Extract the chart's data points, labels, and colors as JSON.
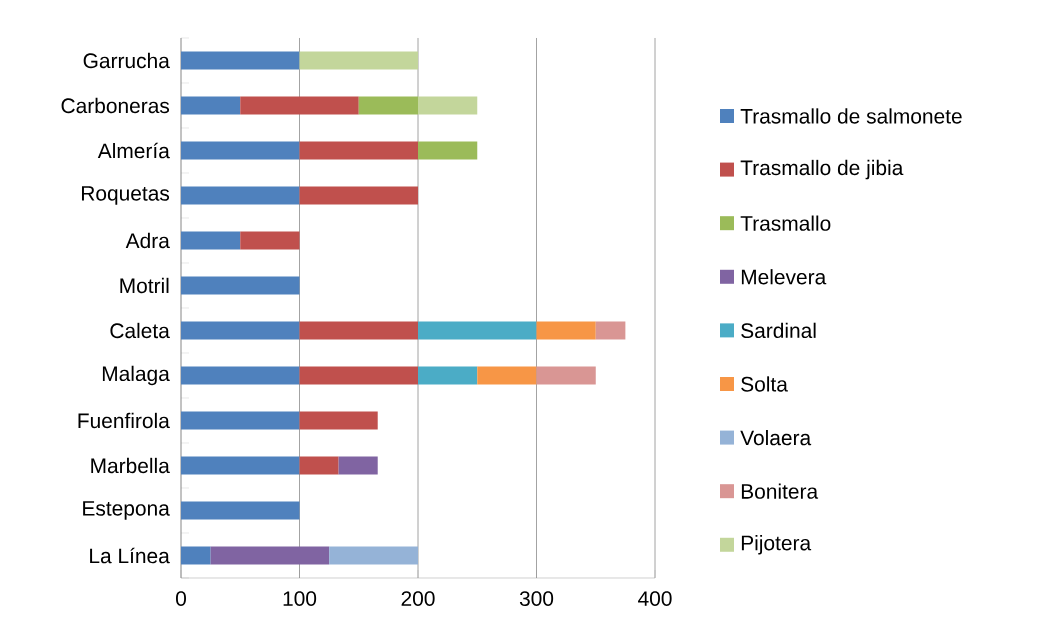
{
  "chart_data": {
    "type": "bar",
    "orientation": "horizontal",
    "stacked": true,
    "categories": [
      "Garrucha",
      "Carboneras",
      "Almería",
      "Roquetas",
      "Adra",
      "Motril",
      "Caleta",
      "Malaga",
      "Fuenfirola",
      "Marbella",
      "Estepona",
      "La Línea"
    ],
    "series": [
      {
        "name": "Trasmallo de salmonete",
        "color": "#4f81bd",
        "values": [
          100,
          50,
          100,
          100,
          50,
          100,
          100,
          100,
          100,
          100,
          100,
          25
        ]
      },
      {
        "name": "Trasmallo de jibia",
        "color": "#c0504d",
        "values": [
          null,
          100,
          100,
          100,
          50,
          null,
          100,
          100,
          66,
          33,
          null,
          null
        ]
      },
      {
        "name": "Trasmallo",
        "color": "#9bbb59",
        "values": [
          null,
          50,
          50,
          null,
          null,
          null,
          null,
          null,
          null,
          null,
          null,
          null
        ]
      },
      {
        "name": "Melevera",
        "color": "#8064a2",
        "values": [
          null,
          null,
          null,
          null,
          null,
          null,
          null,
          null,
          null,
          33,
          null,
          100
        ]
      },
      {
        "name": "Sardinal",
        "color": "#4bacc6",
        "values": [
          null,
          null,
          null,
          null,
          null,
          null,
          100,
          50,
          null,
          null,
          null,
          null
        ]
      },
      {
        "name": "Solta",
        "color": "#f79646",
        "values": [
          null,
          null,
          null,
          null,
          null,
          null,
          50,
          50,
          null,
          null,
          null,
          null
        ]
      },
      {
        "name": "Volaera",
        "color": "#95b3d7",
        "values": [
          null,
          null,
          null,
          null,
          null,
          null,
          null,
          null,
          null,
          null,
          null,
          75
        ]
      },
      {
        "name": "Bonitera",
        "color": "#d99694",
        "values": [
          null,
          null,
          null,
          null,
          null,
          null,
          25,
          50,
          null,
          null,
          null,
          null
        ]
      },
      {
        "name": "Pijotera",
        "color": "#c3d69b",
        "values": [
          100,
          50,
          null,
          null,
          null,
          null,
          null,
          null,
          null,
          null,
          null,
          null
        ]
      }
    ],
    "xlim": [
      0,
      400
    ],
    "xticks": [
      0,
      100,
      200,
      300,
      400
    ],
    "grid": "x",
    "legend": "right"
  }
}
